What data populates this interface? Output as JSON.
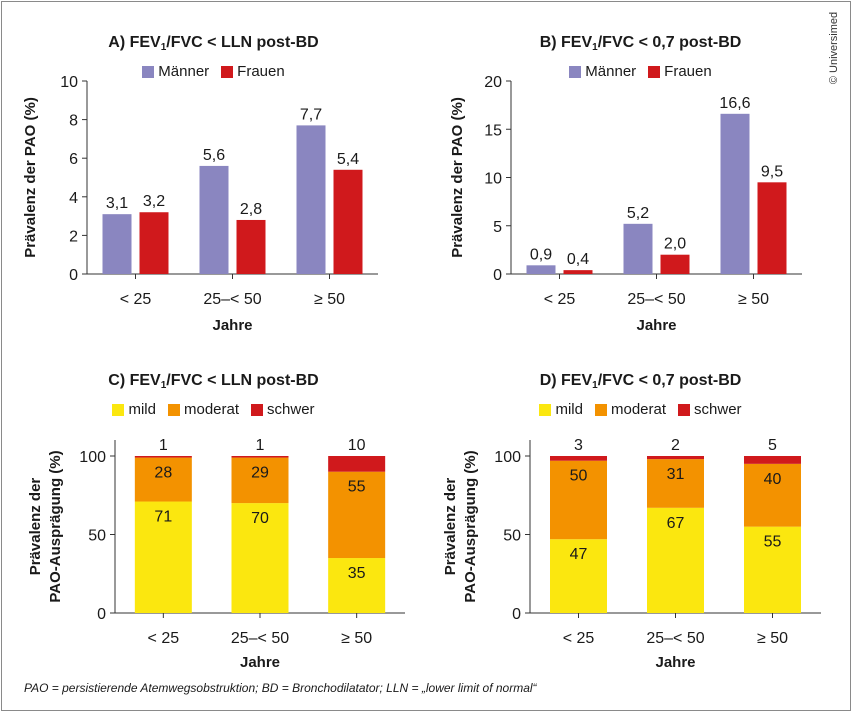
{
  "copyright": "© Universimed",
  "footnote": "PAO = persistierende Atemwegsobstruktion; BD = Bronchodilatator; LLN = „lower limit of normal“",
  "colors": {
    "maenner": "#8a86c0",
    "frauen": "#d0191c",
    "mild": "#fbe70f",
    "moderat": "#f39200",
    "schwer": "#d0191c"
  },
  "chart_data": [
    {
      "id": "A",
      "type": "bar",
      "title_prefix": "A) FEV",
      "title_sub": "1",
      "title_suffix": "/FVC < LLN post-BD",
      "categories": [
        "< 25",
        "25–< 50",
        "≥ 50"
      ],
      "series": [
        {
          "name": "Männer",
          "color_key": "maenner",
          "values": [
            3.1,
            5.6,
            7.7
          ],
          "labels": [
            "3,1",
            "5,6",
            "7,7"
          ]
        },
        {
          "name": "Frauen",
          "color_key": "frauen",
          "values": [
            3.2,
            2.8,
            5.4
          ],
          "labels": [
            "3,2",
            "2,8",
            "5,4"
          ]
        }
      ],
      "xlabel": "Jahre",
      "ylabel": "Prävalenz der PAO (%)",
      "ylim": [
        0,
        10
      ],
      "yticks": [
        0,
        2,
        4,
        6,
        8,
        10
      ],
      "grid": false,
      "legend": "top-center"
    },
    {
      "id": "B",
      "type": "bar",
      "title_prefix": "B) FEV",
      "title_sub": "1",
      "title_suffix": "/FVC < 0,7 post-BD",
      "categories": [
        "< 25",
        "25–< 50",
        "≥ 50"
      ],
      "series": [
        {
          "name": "Männer",
          "color_key": "maenner",
          "values": [
            0.9,
            5.2,
            16.6
          ],
          "labels": [
            "0,9",
            "5,2",
            "16,6"
          ]
        },
        {
          "name": "Frauen",
          "color_key": "frauen",
          "values": [
            0.4,
            2.0,
            9.5
          ],
          "labels": [
            "0,4",
            "2,0",
            "9,5"
          ]
        }
      ],
      "xlabel": "Jahre",
      "ylabel": "Prävalenz der PAO (%)",
      "ylim": [
        0,
        20
      ],
      "yticks": [
        0,
        5,
        10,
        15,
        20
      ],
      "grid": false,
      "legend": "top-center"
    },
    {
      "id": "C",
      "type": "bar",
      "stacked": true,
      "title_prefix": "C) FEV",
      "title_sub": "1",
      "title_suffix": "/FVC < LLN post-BD",
      "categories": [
        "< 25",
        "25–< 50",
        "≥ 50"
      ],
      "series": [
        {
          "name": "mild",
          "color_key": "mild",
          "values": [
            71,
            70,
            35
          ]
        },
        {
          "name": "moderat",
          "color_key": "moderat",
          "values": [
            28,
            29,
            55
          ]
        },
        {
          "name": "schwer",
          "color_key": "schwer",
          "values": [
            1,
            1,
            10
          ]
        }
      ],
      "xlabel": "Jahre",
      "ylabel": [
        "Prävalenz der",
        "PAO-Ausprägung (%)"
      ],
      "ylim": [
        0,
        100
      ],
      "yticks": [
        0,
        50,
        100
      ],
      "grid": false,
      "legend": "top-center"
    },
    {
      "id": "D",
      "type": "bar",
      "stacked": true,
      "title_prefix": "D) FEV",
      "title_sub": "1",
      "title_suffix": "/FVC < 0,7 post-BD",
      "categories": [
        "< 25",
        "25–< 50",
        "≥ 50"
      ],
      "series": [
        {
          "name": "mild",
          "color_key": "mild",
          "values": [
            47,
            67,
            55
          ]
        },
        {
          "name": "moderat",
          "color_key": "moderat",
          "values": [
            50,
            31,
            40
          ]
        },
        {
          "name": "schwer",
          "color_key": "schwer",
          "values": [
            3,
            2,
            5
          ]
        }
      ],
      "xlabel": "Jahre",
      "ylabel": [
        "Prävalenz der",
        "PAO-Ausprägung (%)"
      ],
      "ylim": [
        0,
        100
      ],
      "yticks": [
        0,
        50,
        100
      ],
      "grid": false,
      "legend": "top-center"
    }
  ]
}
